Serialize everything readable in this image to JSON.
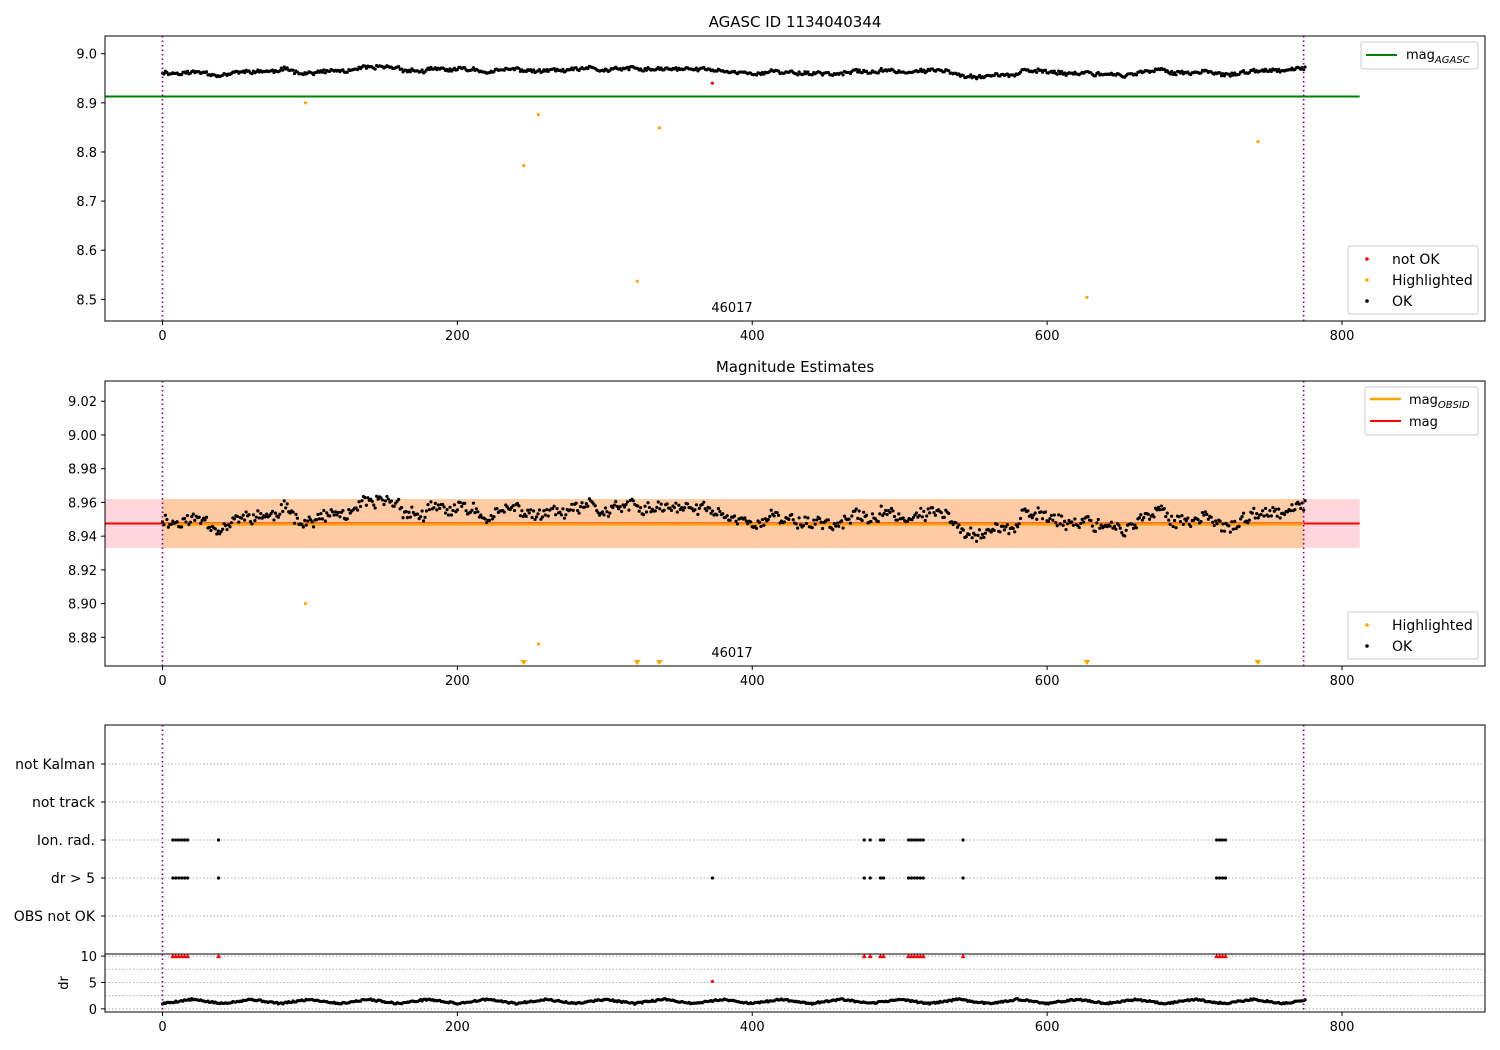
{
  "colors": {
    "ok": "#000000",
    "not_ok": "#ff0000",
    "highlighted": "#ffa500",
    "mag_agasc": "#008000",
    "mag_obsid": "#ffa500",
    "mag": "#ff0000",
    "band_obsid": "#ffcba4",
    "band_mag": "#ffd6dc",
    "obsid_boundary": "#800080",
    "grid": "#b0b0b0"
  },
  "chart_data": [
    {
      "type": "scatter",
      "title": "AGASC ID 1134040344",
      "xlabel": "",
      "ylabel": "",
      "xlim": [
        -39,
        897
      ],
      "ylim": [
        8.456,
        9.036
      ],
      "xticks": [
        0,
        200,
        400,
        600,
        800
      ],
      "yticks": [
        8.5,
        8.6,
        8.7,
        8.8,
        8.9,
        9.0
      ],
      "ytick_labels": [
        "8.5",
        "8.6",
        "8.7",
        "8.8",
        "8.9",
        "9.0"
      ],
      "legend_position": "top-right (mag_AGASC), bottom-right (points)",
      "legend_line": [
        {
          "label": "mag",
          "sub": "AGASC",
          "color_key": "mag_agasc"
        }
      ],
      "legend_points": [
        {
          "label": "not OK",
          "color_key": "not_ok"
        },
        {
          "label": "Highlighted",
          "color_key": "highlighted"
        },
        {
          "label": "OK",
          "color_key": "ok"
        }
      ],
      "obsid_label": {
        "text": "46017",
        "x": 386
      },
      "obsid_boundaries": [
        0,
        774
      ],
      "mag_agasc": {
        "value": 8.913,
        "x_range": [
          -39,
          812
        ]
      },
      "series": [
        {
          "name": "OK",
          "generator": {
            "baseline": 8.951,
            "noise_scale": 0.012,
            "offset": 0.012,
            "jitter": 0.006,
            "seed": 11,
            "x_start": 0,
            "x_end": 775,
            "n": 780
          }
        },
        {
          "name": "Highlighted",
          "x": [
            97,
            245,
            255,
            322,
            337,
            627,
            743
          ],
          "y": [
            8.9,
            8.772,
            8.876,
            8.537,
            8.849,
            8.504,
            8.821
          ]
        },
        {
          "name": "not OK",
          "x": [
            373
          ],
          "y": [
            8.94
          ]
        }
      ]
    },
    {
      "type": "scatter",
      "title": "Magnitude Estimates",
      "xlabel": "",
      "ylabel": "",
      "xlim": [
        -39,
        897
      ],
      "ylim": [
        8.863,
        9.032
      ],
      "xticks": [
        0,
        200,
        400,
        600,
        800
      ],
      "yticks": [
        8.88,
        8.9,
        8.92,
        8.94,
        8.96,
        8.98,
        9.0,
        9.02
      ],
      "ytick_labels": [
        "8.88",
        "8.90",
        "8.92",
        "8.94",
        "8.96",
        "8.98",
        "9.00",
        "9.02"
      ],
      "legend_position": "top-right (lines), bottom-right (points)",
      "legend_lines": [
        {
          "label": "mag",
          "sub": "OBSID",
          "color_key": "mag_obsid"
        },
        {
          "label": "mag",
          "sub": "",
          "color_key": "mag"
        }
      ],
      "legend_points": [
        {
          "label": "Highlighted",
          "color_key": "highlighted"
        },
        {
          "label": "OK",
          "color_key": "ok"
        }
      ],
      "obsid_label": {
        "text": "46017",
        "x": 386
      },
      "obsid_boundaries": [
        0,
        774
      ],
      "mag_obsid": {
        "value": 8.947,
        "band": [
          8.933,
          8.962
        ],
        "x_range": [
          -39,
          812
        ]
      },
      "mag": {
        "value": 8.9475,
        "band": [
          8.933,
          8.962
        ],
        "x_range": [
          -39,
          812
        ]
      },
      "series": [
        {
          "name": "OK",
          "generator": {
            "baseline": 8.951,
            "noise_scale": 0.012,
            "offset": 0.0,
            "jitter": 0.006,
            "seed": 11,
            "x_start": 0,
            "x_end": 775,
            "n": 780
          }
        },
        {
          "name": "Highlighted",
          "x": [
            97,
            255
          ],
          "y": [
            8.9,
            8.876
          ]
        },
        {
          "name": "Highlighted (below axis)",
          "marker": "triangle-down",
          "x": [
            245,
            322,
            337,
            627,
            743
          ]
        }
      ]
    },
    {
      "type": "scatter",
      "title": "",
      "xlabel": "",
      "ylabel": "",
      "xlim": [
        -39,
        897
      ],
      "ylim": [
        0,
        6
      ],
      "xticks": [
        0,
        200,
        400,
        600,
        800
      ],
      "flags": [
        "not Kalman",
        "not track",
        "Ion. rad.",
        "dr > 5",
        "OBS not OK"
      ],
      "obsid_boundaries": [
        0,
        774
      ],
      "series": [
        {
          "name": "Ion. rad.",
          "x": [
            7,
            9,
            11,
            13,
            15,
            17,
            38,
            476,
            480,
            487,
            489,
            506,
            508,
            510,
            512,
            514,
            516,
            543,
            715,
            717,
            719,
            721
          ]
        },
        {
          "name": "dr > 5",
          "x": [
            7,
            9,
            11,
            13,
            15,
            17,
            38,
            373,
            476,
            480,
            487,
            489,
            506,
            508,
            510,
            512,
            514,
            516,
            543,
            715,
            717,
            719,
            721
          ]
        }
      ]
    },
    {
      "type": "scatter",
      "title": "",
      "xlabel": "",
      "ylabel": "dr",
      "xlim": [
        -39,
        897
      ],
      "ylim": [
        -0.6,
        10.4
      ],
      "xticks": [
        0,
        200,
        400,
        600,
        800
      ],
      "xtick_labels": [
        "0",
        "200",
        "400",
        "600",
        "800"
      ],
      "yticks": [
        0,
        5,
        10
      ],
      "ytick_labels": [
        "0",
        "5",
        "10"
      ],
      "obsid_boundaries": [
        0,
        774
      ],
      "series": [
        {
          "name": "dr",
          "generator": {
            "baseline": 1.0,
            "noise_scale": 0.8,
            "offset": 0.0,
            "jitter": 0.3,
            "seed": 5,
            "x_start": 0,
            "x_end": 775,
            "n": 780
          }
        },
        {
          "name": "dr > 5",
          "x": [
            373
          ],
          "y": [
            5.2
          ]
        },
        {
          "name": "dr clipped",
          "marker": "triangle-up",
          "x": [
            7,
            9,
            11,
            13,
            15,
            17,
            38,
            476,
            480,
            487,
            489,
            506,
            508,
            510,
            512,
            514,
            516,
            543,
            715,
            717,
            719,
            721
          ]
        }
      ]
    }
  ]
}
